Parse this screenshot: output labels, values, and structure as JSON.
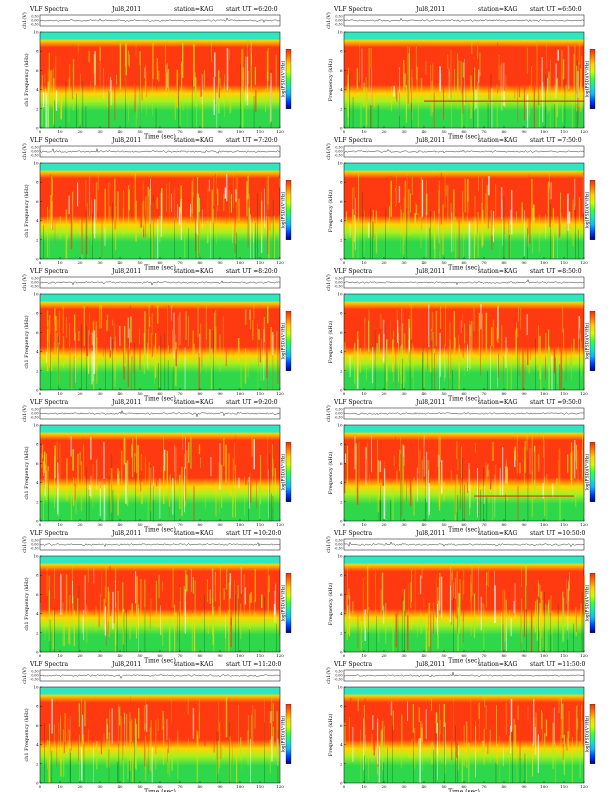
{
  "colorbar": {
    "label": "log(PSD)(V²/Hz)",
    "gradient": [
      "#ff2a00",
      "#ff7a00",
      "#ffd200",
      "#c8ff00",
      "#36ff3c",
      "#14e6b4",
      "#10b4ff",
      "#0040ff",
      "#000080"
    ]
  },
  "spectrogram_colors": {
    "high": "#ff3a10",
    "upper_mid": "#ffd400",
    "mid": "#a8f020",
    "low": "#2ed84a",
    "band": "#30e6c0"
  },
  "chart_data": [
    {
      "type": "heatmap",
      "title_left": "VLF Spectra",
      "date": "Jul8,2011",
      "station": "station=KAG",
      "start_ut": "start UT =6:20:0",
      "xlabel": "Time (sec)",
      "ylabel_top": "ch1(V)",
      "ylabel_main": "ch1 Frequency (kHz)",
      "x_ticks": [
        "0",
        "10",
        "20",
        "30",
        "40",
        "50",
        "60",
        "70",
        "80",
        "90",
        "100",
        "110",
        "120"
      ],
      "y_ticks": [
        "0",
        "2",
        "4",
        "6",
        "8",
        "10"
      ],
      "trace_ticks": [
        "0.30",
        "0.00",
        "-0.30"
      ],
      "xlim": [
        0,
        120
      ],
      "ylim": [
        0,
        10
      ],
      "colorbar_side": "right",
      "tone_line": null
    },
    {
      "type": "heatmap",
      "title_left": "VLF Spectra",
      "date": "Jul8,2011",
      "station": "station=KAG",
      "start_ut": "start UT =6:50:0",
      "xlabel": "Time (sec)",
      "ylabel_top": "ch1(V)",
      "ylabel_main": "Frequency (kHz)",
      "x_ticks": [
        "0",
        "10",
        "20",
        "30",
        "40",
        "50",
        "60",
        "70",
        "80",
        "90",
        "100",
        "110",
        "120"
      ],
      "y_ticks": [
        "0",
        "2",
        "4",
        "6",
        "8",
        "10"
      ],
      "trace_ticks": [
        "0.30",
        "0.00",
        "-0.30"
      ],
      "xlim": [
        0,
        120
      ],
      "ylim": [
        0,
        10
      ],
      "colorbar_side": "right",
      "tone_line": {
        "freq": 2.8,
        "start": 40,
        "end": 120
      }
    },
    {
      "type": "heatmap",
      "title_left": "VLF Spectra",
      "date": "Jul8,2011",
      "station": "station=KAG",
      "start_ut": "start UT =7:20:0",
      "xlabel": "Time (sec)",
      "ylabel_top": "ch1(V)",
      "ylabel_main": "ch1 Frequency (kHz)",
      "x_ticks": [
        "0",
        "10",
        "20",
        "30",
        "40",
        "50",
        "60",
        "70",
        "80",
        "90",
        "100",
        "110",
        "120"
      ],
      "y_ticks": [
        "0",
        "2",
        "4",
        "6",
        "8",
        "10"
      ],
      "trace_ticks": [
        "0.30",
        "0.00",
        "-0.30"
      ],
      "xlim": [
        0,
        120
      ],
      "ylim": [
        0,
        10
      ],
      "colorbar_side": "right",
      "tone_line": null
    },
    {
      "type": "heatmap",
      "title_left": "VLF Spectra",
      "date": "Jul8,2011",
      "station": "station=KAG",
      "start_ut": "start UT =7:50:0",
      "xlabel": "Time (sec)",
      "ylabel_top": "ch1(V)",
      "ylabel_main": "Frequency (kHz)",
      "x_ticks": [
        "0",
        "10",
        "20",
        "30",
        "40",
        "50",
        "60",
        "70",
        "80",
        "90",
        "100",
        "110",
        "120"
      ],
      "y_ticks": [
        "0",
        "2",
        "4",
        "6",
        "8",
        "10"
      ],
      "trace_ticks": [
        "0.30",
        "0.00",
        "-0.30"
      ],
      "xlim": [
        0,
        120
      ],
      "ylim": [
        0,
        10
      ],
      "colorbar_side": "right",
      "tone_line": null
    },
    {
      "type": "heatmap",
      "title_left": "VLF Spectra",
      "date": "Jul8,2011",
      "station": "station=KAG",
      "start_ut": "start UT =8:20:0",
      "xlabel": "Time (sec)",
      "ylabel_top": "ch1(V)",
      "ylabel_main": "ch1 Frequency (kHz)",
      "x_ticks": [
        "0",
        "10",
        "20",
        "30",
        "40",
        "50",
        "60",
        "70",
        "80",
        "90",
        "100",
        "110",
        "120"
      ],
      "y_ticks": [
        "0",
        "2",
        "4",
        "6",
        "8",
        "10"
      ],
      "trace_ticks": [
        "0.30",
        "0.00",
        "-0.30"
      ],
      "xlim": [
        0,
        120
      ],
      "ylim": [
        0,
        10
      ],
      "colorbar_side": "right",
      "tone_line": null
    },
    {
      "type": "heatmap",
      "title_left": "VLF Spectra",
      "date": "Jul8,2011",
      "station": "station=KAG",
      "start_ut": "start UT =8:50:0",
      "xlabel": "Time (sec)",
      "ylabel_top": "ch1(V)",
      "ylabel_main": "Frequency (kHz)",
      "x_ticks": [
        "0",
        "10",
        "20",
        "30",
        "40",
        "50",
        "60",
        "70",
        "80",
        "90",
        "100",
        "110",
        "120"
      ],
      "y_ticks": [
        "0",
        "2",
        "4",
        "6",
        "8",
        "10"
      ],
      "trace_ticks": [
        "0.30",
        "0.00",
        "-0.30"
      ],
      "xlim": [
        0,
        120
      ],
      "ylim": [
        0,
        10
      ],
      "colorbar_side": "right",
      "tone_line": null
    },
    {
      "type": "heatmap",
      "title_left": "VLF Spectra",
      "date": "Jul8,2011",
      "station": "station=KAG",
      "start_ut": "start UT =9:20:0",
      "xlabel": "Time (sec)",
      "ylabel_top": "ch1(V)",
      "ylabel_main": "ch1 Frequency (kHz)",
      "x_ticks": [
        "0",
        "10",
        "20",
        "30",
        "40",
        "50",
        "60",
        "70",
        "80",
        "90",
        "100",
        "110",
        "120"
      ],
      "y_ticks": [
        "0",
        "2",
        "4",
        "6",
        "8",
        "10"
      ],
      "trace_ticks": [
        "0.30",
        "0.00",
        "-0.30"
      ],
      "xlim": [
        0,
        120
      ],
      "ylim": [
        0,
        10
      ],
      "colorbar_side": "right",
      "tone_line": null
    },
    {
      "type": "heatmap",
      "title_left": "VLF Spectra",
      "date": "Jul8,2011",
      "station": "station=KAG",
      "start_ut": "start UT =9:50:0",
      "xlabel": "Time (sec)",
      "ylabel_top": "ch1(V)",
      "ylabel_main": "Frequency (kHz)",
      "x_ticks": [
        "0",
        "10",
        "20",
        "30",
        "40",
        "50",
        "60",
        "70",
        "80",
        "90",
        "100",
        "110",
        "120"
      ],
      "y_ticks": [
        "0",
        "2",
        "4",
        "6",
        "8",
        "10"
      ],
      "trace_ticks": [
        "0.30",
        "0.00",
        "-0.30"
      ],
      "xlim": [
        0,
        120
      ],
      "ylim": [
        0,
        10
      ],
      "colorbar_side": "right",
      "tone_line": {
        "freq": 2.6,
        "start": 65,
        "end": 115
      }
    },
    {
      "type": "heatmap",
      "title_left": "VLF Spectra",
      "date": "Jul8,2011",
      "station": "station=KAG",
      "start_ut": "start UT =10:20:0",
      "xlabel": "Time (sec)",
      "ylabel_top": "ch1(V)",
      "ylabel_main": "ch1 Frequency (kHz)",
      "x_ticks": [
        "0",
        "10",
        "20",
        "30",
        "40",
        "50",
        "60",
        "70",
        "80",
        "90",
        "100",
        "110",
        "120"
      ],
      "y_ticks": [
        "0",
        "2",
        "4",
        "6",
        "8",
        "10"
      ],
      "trace_ticks": [
        "0.30",
        "0.00",
        "-0.30"
      ],
      "xlim": [
        0,
        120
      ],
      "ylim": [
        0,
        10
      ],
      "colorbar_side": "right",
      "tone_line": null
    },
    {
      "type": "heatmap",
      "title_left": "VLF Spectra",
      "date": "Jul8,2011",
      "station": "station=KAG",
      "start_ut": "start UT =10:50:0",
      "xlabel": "Time (sec)",
      "ylabel_top": "ch1(V)",
      "ylabel_main": "Frequency (kHz)",
      "x_ticks": [
        "0",
        "10",
        "20",
        "30",
        "40",
        "50",
        "60",
        "70",
        "80",
        "90",
        "100",
        "110",
        "120"
      ],
      "y_ticks": [
        "0",
        "2",
        "4",
        "6",
        "8",
        "10"
      ],
      "trace_ticks": [
        "0.30",
        "0.00",
        "-0.30"
      ],
      "xlim": [
        0,
        120
      ],
      "ylim": [
        0,
        10
      ],
      "colorbar_side": "right",
      "tone_line": null
    },
    {
      "type": "heatmap",
      "title_left": "VLF Spectra",
      "date": "Jul8,2011",
      "station": "station=KAG",
      "start_ut": "start UT =11:20:0",
      "xlabel": "Time (sec)",
      "ylabel_top": "ch1(V)",
      "ylabel_main": "ch1 Frequency (kHz)",
      "x_ticks": [
        "0",
        "10",
        "20",
        "30",
        "40",
        "50",
        "60",
        "70",
        "80",
        "90",
        "100",
        "110",
        "120"
      ],
      "y_ticks": [
        "0",
        "2",
        "4",
        "6",
        "8",
        "10"
      ],
      "trace_ticks": [
        "0.30",
        "0.00",
        "-0.30"
      ],
      "xlim": [
        0,
        120
      ],
      "ylim": [
        0,
        10
      ],
      "colorbar_side": "right",
      "tone_line": null
    },
    {
      "type": "heatmap",
      "title_left": "VLF Spectra",
      "date": "Jul8,2011",
      "station": "station=KAG",
      "start_ut": "start UT =11:50:0",
      "xlabel": "Time (sec)",
      "ylabel_top": "ch1(V)",
      "ylabel_main": "Frequency (kHz)",
      "x_ticks": [
        "0",
        "10",
        "20",
        "30",
        "40",
        "50",
        "60",
        "70",
        "80",
        "90",
        "100",
        "110",
        "120"
      ],
      "y_ticks": [
        "0",
        "2",
        "4",
        "6",
        "8",
        "10"
      ],
      "trace_ticks": [
        "0.30",
        "0.00",
        "-0.30"
      ],
      "xlim": [
        0,
        120
      ],
      "ylim": [
        0,
        10
      ],
      "colorbar_side": "right",
      "tone_line": null
    }
  ]
}
